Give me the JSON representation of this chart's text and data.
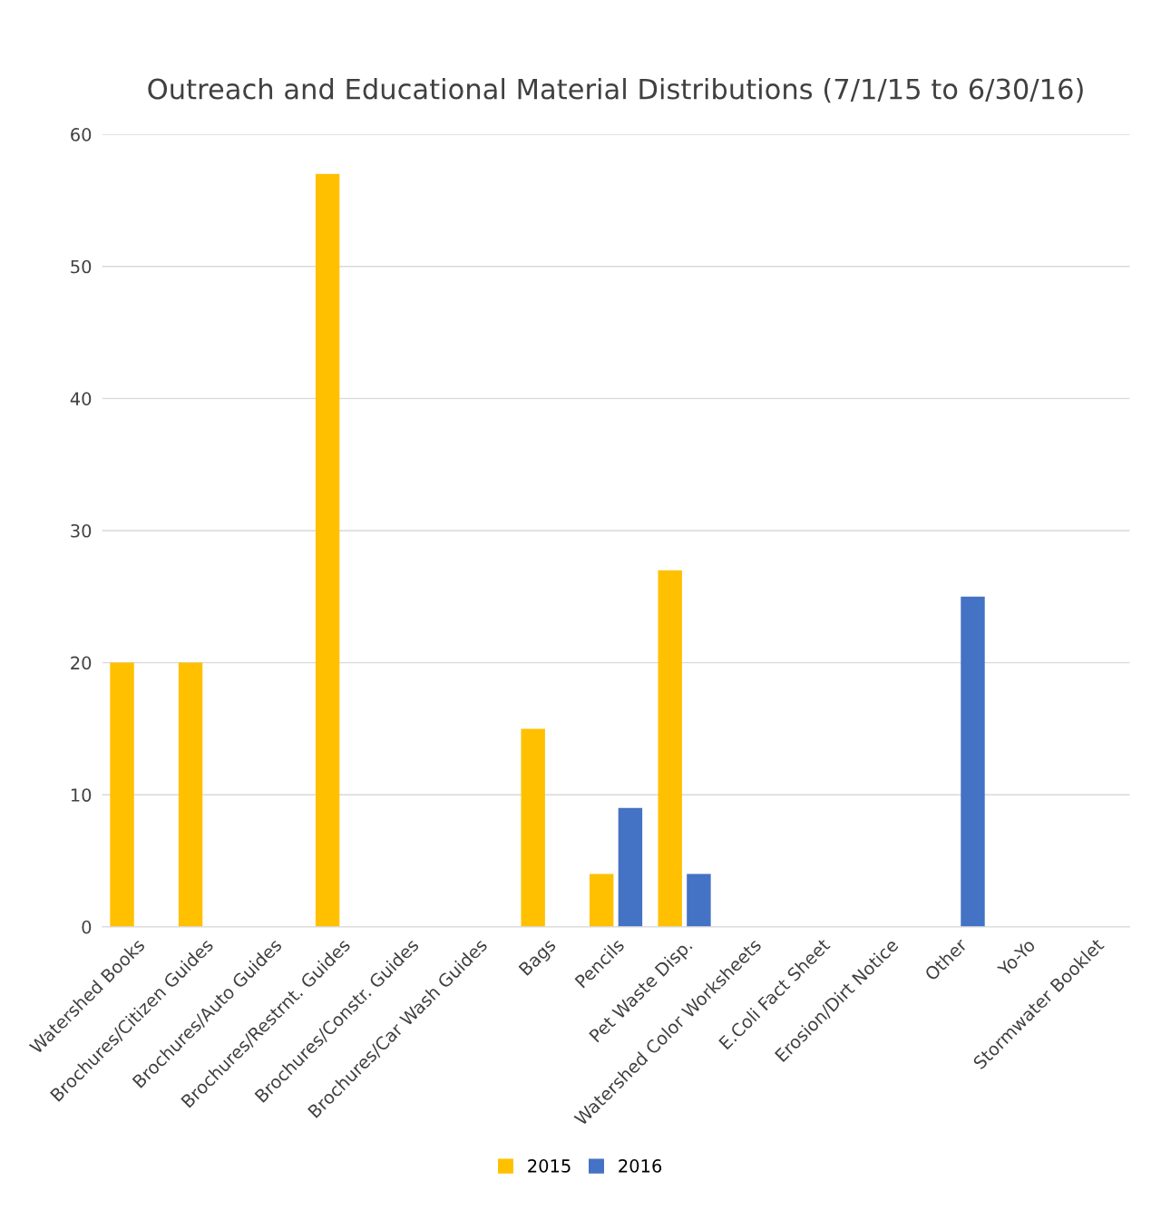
{
  "chart_data": {
    "type": "bar",
    "title": "Outreach and Educational Material Distributions (7/1/15 to 6/30/16)",
    "categories": [
      "Watershed Books",
      "Brochures/Citizen Guides",
      "Brochures/Auto Guides",
      "Brochures/Restrnt. Guides",
      "Brochures/Constr. Guides",
      "Brochures/Car Wash Guides",
      "Bags",
      "Pencils",
      "Pet Waste Disp.",
      "Watershed Color Worksheets",
      "E.Coli Fact Sheet",
      "Erosion/Dirt Notice",
      "Other",
      "Yo-Yo",
      "Stormwater Booklet"
    ],
    "series": [
      {
        "name": "2015",
        "color": "#ffc000",
        "values": [
          20,
          20,
          0,
          57,
          0,
          0,
          15,
          4,
          27,
          0,
          0,
          0,
          0,
          0,
          0
        ]
      },
      {
        "name": "2016",
        "color": "#4472c4",
        "values": [
          0,
          0,
          0,
          0,
          0,
          0,
          0,
          9,
          4,
          0,
          0,
          0,
          25,
          0,
          0
        ]
      }
    ],
    "ylim": [
      0,
      60
    ],
    "yticks": [
      0,
      10,
      20,
      30,
      40,
      50,
      60
    ],
    "grid": "y",
    "legend": "bottom"
  }
}
